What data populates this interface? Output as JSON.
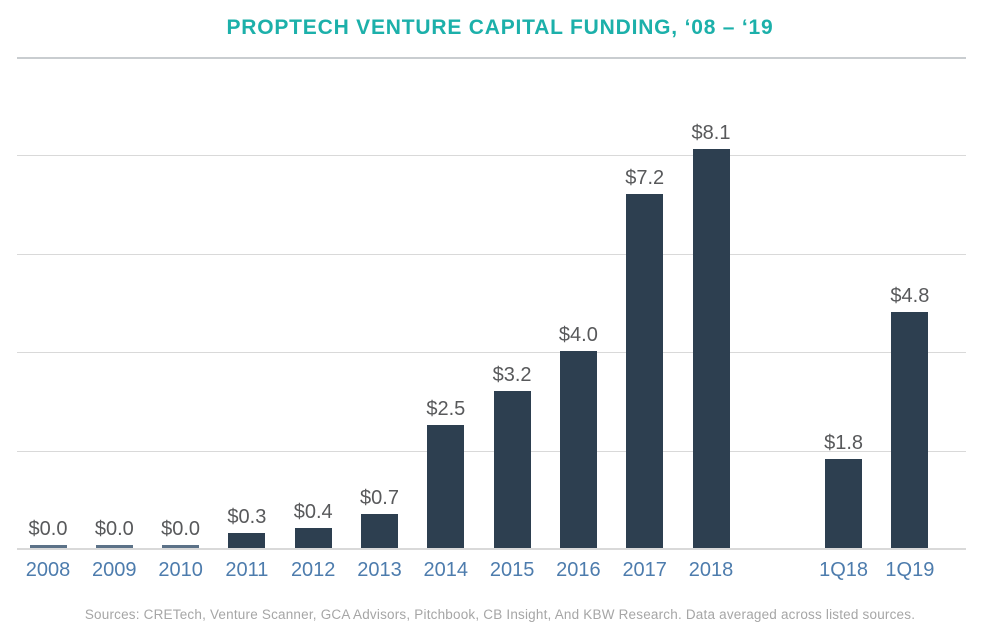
{
  "title": "PROPTECH VENTURE CAPITAL FUNDING, ‘08 – ‘19",
  "source": "Sources: CRETech, Venture Scanner, GCA Advisors, Pitchbook, CB Insight, And KBW Research. Data averaged across listed sources.",
  "colors": {
    "background": "#ffffff",
    "title": "#1cb0aa",
    "bar": "#2d3f50",
    "zero_bar": "#5c7288",
    "axis_label": "#4d7cad",
    "value_label": "#58595b",
    "gridline": "#d9d9d9",
    "top_gridline": "#c9cdd0",
    "source_text": "#a6a6a6"
  },
  "chart_data": {
    "type": "bar",
    "title": "PROPTECH VENTURE CAPITAL FUNDING, ‘08 – ‘19",
    "xlabel": "",
    "ylabel": "",
    "categories": [
      "2008",
      "2009",
      "2010",
      "2011",
      "2012",
      "2013",
      "2014",
      "2015",
      "2016",
      "2017",
      "2018",
      "1Q18",
      "1Q19"
    ],
    "values": [
      0.0,
      0.0,
      0.0,
      0.3,
      0.4,
      0.7,
      2.5,
      3.2,
      4.0,
      7.2,
      8.1,
      1.8,
      4.8
    ],
    "labels": [
      "$0.0",
      "$0.0",
      "$0.0",
      "$0.3",
      "$0.4",
      "$0.7",
      "$2.5",
      "$3.2",
      "$4.0",
      "$7.2",
      "$8.1",
      "$1.8",
      "$4.8"
    ],
    "groups": [
      "annual",
      "annual",
      "annual",
      "annual",
      "annual",
      "annual",
      "annual",
      "annual",
      "annual",
      "annual",
      "annual",
      "quarterly",
      "quarterly"
    ],
    "ylim": [
      0,
      10
    ],
    "gridline_step": 2,
    "grid": true,
    "legend": false,
    "units": "$B"
  }
}
